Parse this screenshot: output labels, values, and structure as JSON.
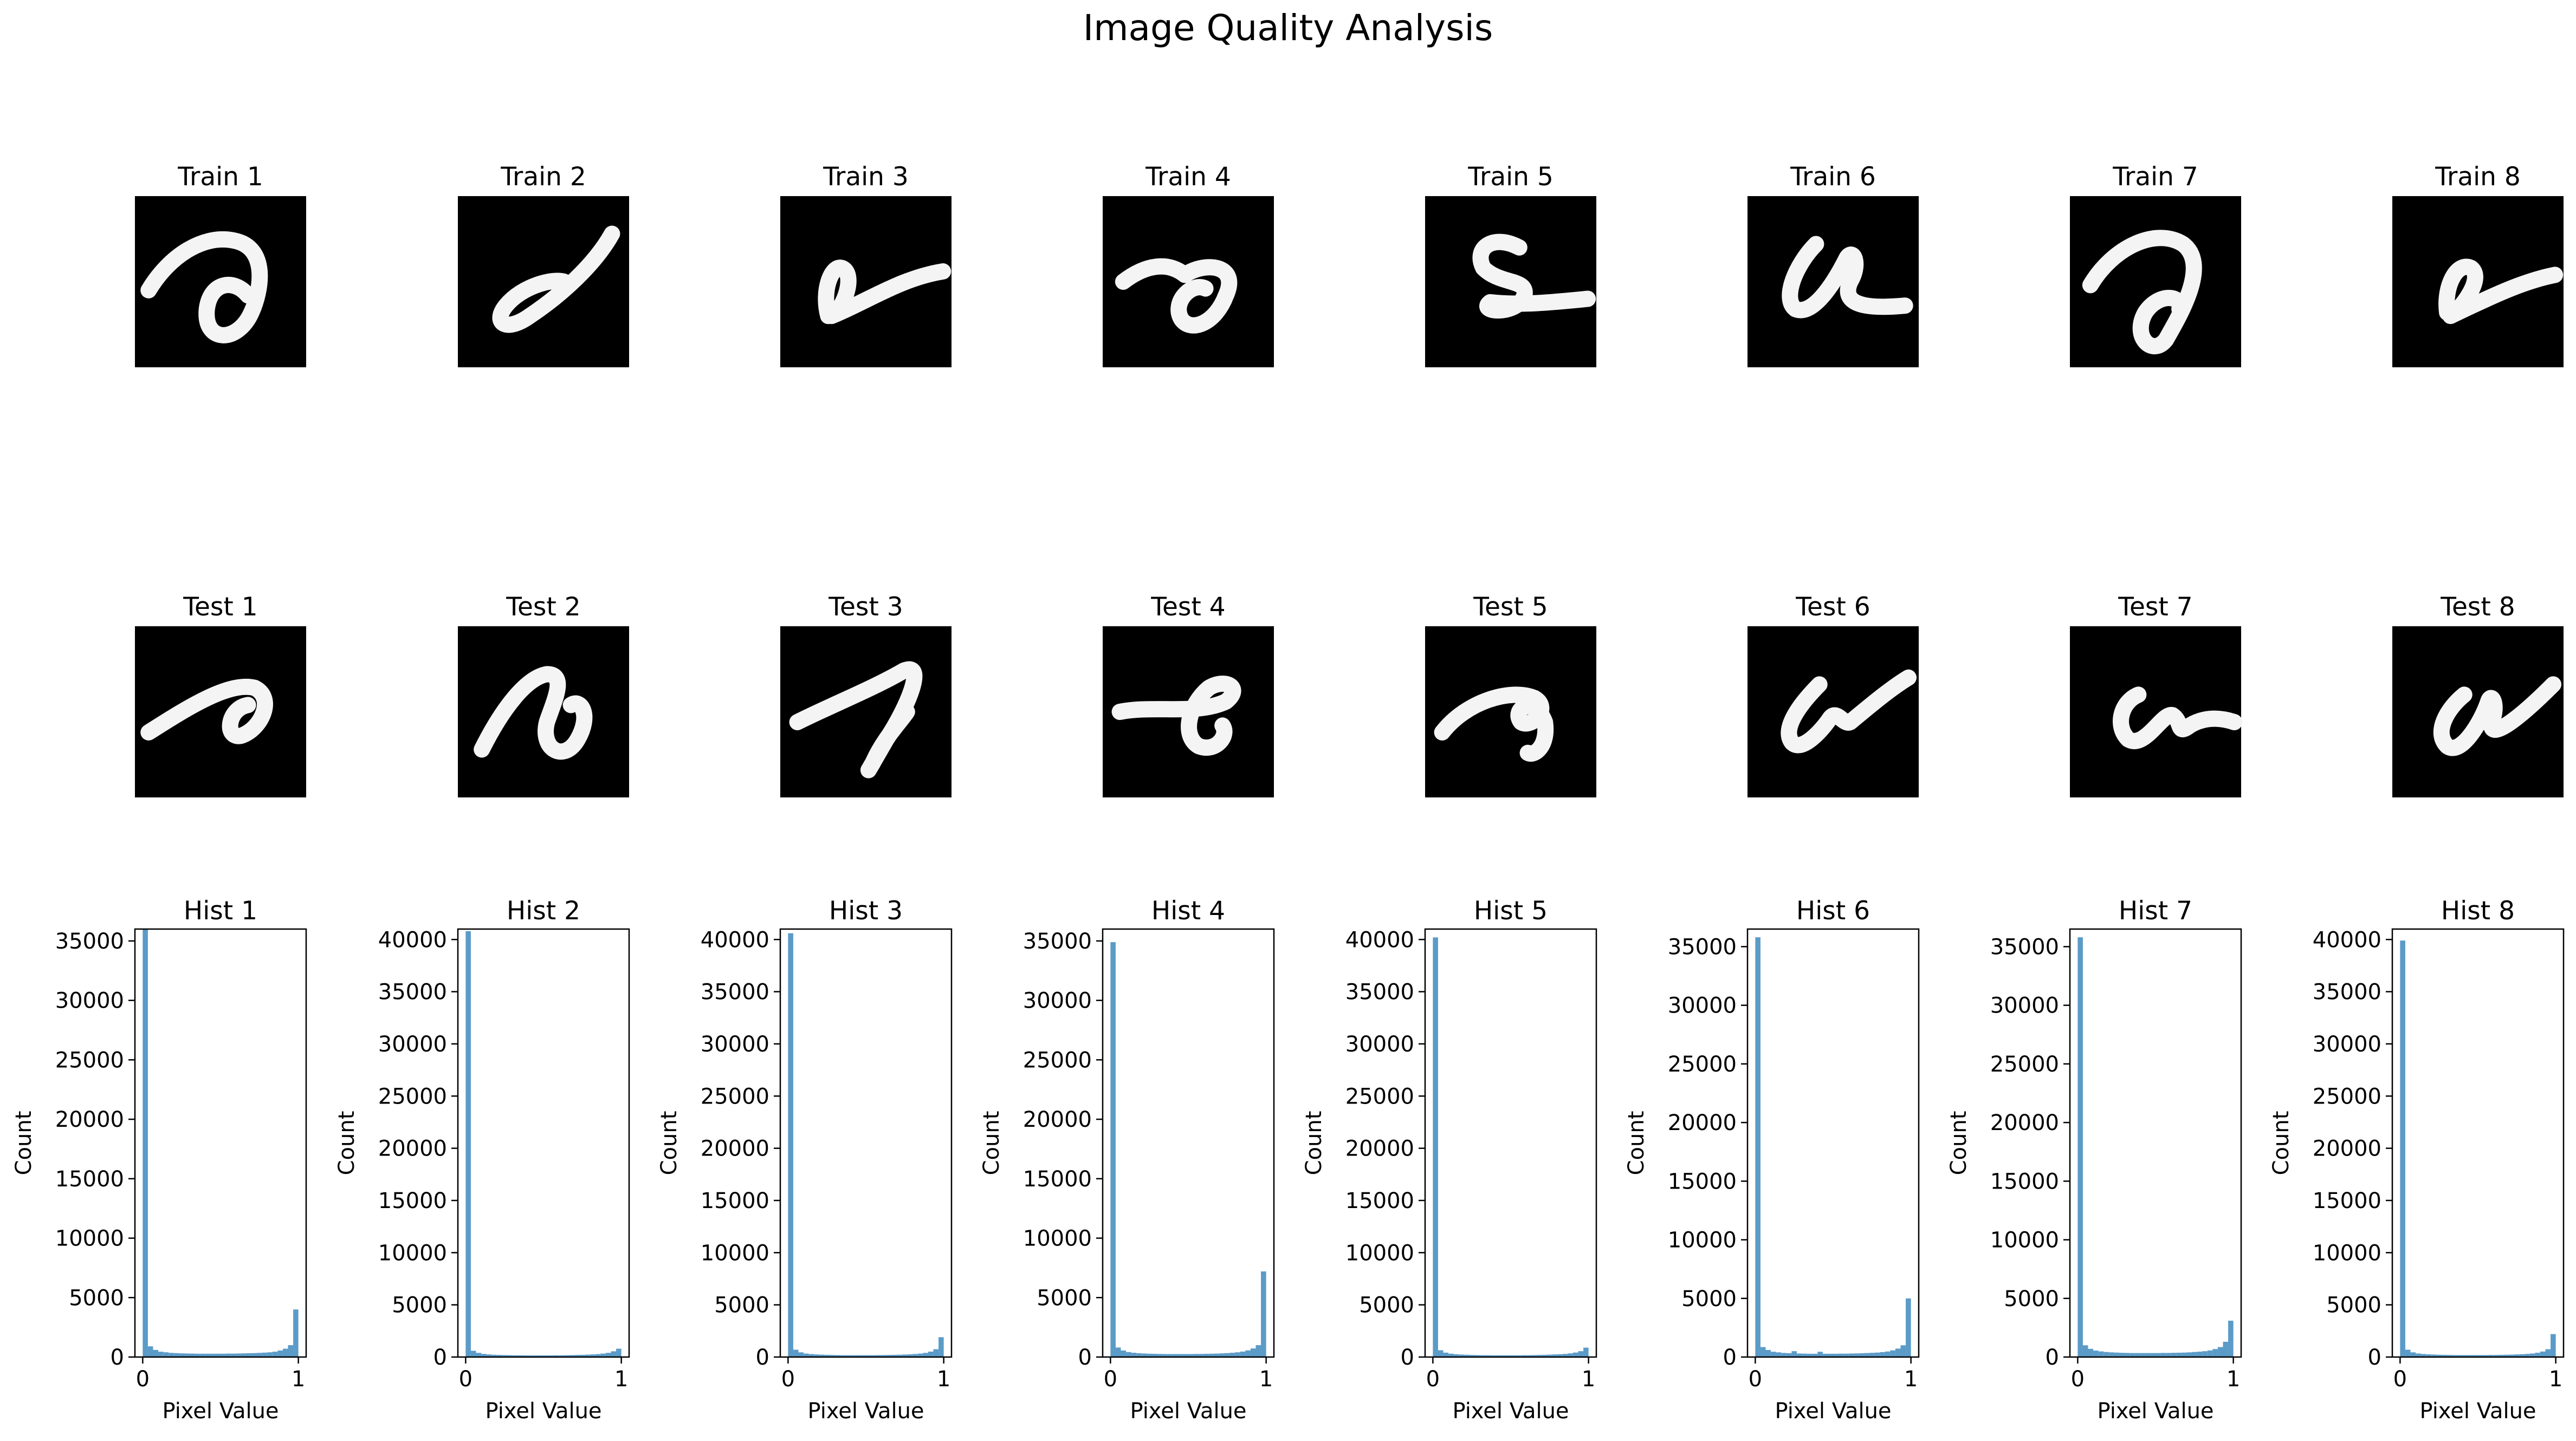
{
  "figure": {
    "title": "Image Quality Analysis"
  },
  "train_row": {
    "titles": [
      "Train 1",
      "Train 2",
      "Train 3",
      "Train 4",
      "Train 5",
      "Train 6",
      "Train 7",
      "Train 8"
    ]
  },
  "test_row": {
    "titles": [
      "Test 1",
      "Test 2",
      "Test 3",
      "Test 4",
      "Test 5",
      "Test 6",
      "Test 7",
      "Test 8"
    ]
  },
  "chart_data": [
    {
      "type": "bar",
      "title": "Hist 1",
      "xlabel": "Pixel Value",
      "ylabel": "Count",
      "xlim": [
        0,
        1
      ],
      "ylim": [
        0,
        36000
      ],
      "yticks": [
        0,
        5000,
        10000,
        15000,
        20000,
        25000,
        30000,
        35000
      ],
      "xticks": [
        0,
        1
      ],
      "color": "#5b9bc8",
      "bins": 30,
      "values": [
        36000,
        900,
        600,
        450,
        400,
        350,
        330,
        310,
        300,
        290,
        280,
        280,
        280,
        280,
        280,
        280,
        290,
        290,
        300,
        310,
        320,
        330,
        350,
        370,
        400,
        450,
        550,
        700,
        1000,
        4000
      ]
    },
    {
      "type": "bar",
      "title": "Hist 2",
      "xlabel": "Pixel Value",
      "ylabel": "Count",
      "xlim": [
        0,
        1
      ],
      "ylim": [
        0,
        41000
      ],
      "yticks": [
        0,
        5000,
        10000,
        15000,
        20000,
        25000,
        30000,
        35000,
        40000
      ],
      "xticks": [
        0,
        1
      ],
      "color": "#5b9bc8",
      "bins": 30,
      "values": [
        40800,
        600,
        400,
        300,
        250,
        220,
        200,
        190,
        180,
        170,
        170,
        160,
        160,
        160,
        160,
        160,
        160,
        170,
        170,
        180,
        190,
        200,
        210,
        230,
        250,
        280,
        330,
        400,
        550,
        800
      ]
    },
    {
      "type": "bar",
      "title": "Hist 3",
      "xlabel": "Pixel Value",
      "ylabel": "Count",
      "xlim": [
        0,
        1
      ],
      "ylim": [
        0,
        41000
      ],
      "yticks": [
        0,
        5000,
        10000,
        15000,
        20000,
        25000,
        30000,
        35000,
        40000
      ],
      "xticks": [
        0,
        1
      ],
      "color": "#5b9bc8",
      "bins": 30,
      "values": [
        40600,
        700,
        450,
        330,
        280,
        250,
        230,
        210,
        200,
        190,
        180,
        180,
        180,
        180,
        180,
        180,
        180,
        190,
        190,
        200,
        210,
        220,
        240,
        260,
        290,
        330,
        400,
        520,
        750,
        1900
      ]
    },
    {
      "type": "bar",
      "title": "Hist 4",
      "xlabel": "Pixel Value",
      "ylabel": "Count",
      "xlim": [
        0,
        1
      ],
      "ylim": [
        0,
        36000
      ],
      "yticks": [
        0,
        5000,
        10000,
        15000,
        20000,
        25000,
        30000,
        35000
      ],
      "xticks": [
        0,
        1
      ],
      "color": "#5b9bc8",
      "bins": 30,
      "values": [
        34900,
        800,
        550,
        420,
        360,
        320,
        300,
        280,
        270,
        260,
        250,
        250,
        250,
        250,
        250,
        250,
        260,
        260,
        270,
        280,
        290,
        310,
        330,
        360,
        400,
        460,
        560,
        720,
        1000,
        7200
      ]
    },
    {
      "type": "bar",
      "title": "Hist 5",
      "xlabel": "Pixel Value",
      "ylabel": "Count",
      "xlim": [
        0,
        1
      ],
      "ylim": [
        0,
        41000
      ],
      "yticks": [
        0,
        5000,
        10000,
        15000,
        20000,
        25000,
        30000,
        35000,
        40000
      ],
      "xticks": [
        0,
        1
      ],
      "color": "#5b9bc8",
      "bins": 30,
      "values": [
        40200,
        650,
        420,
        320,
        270,
        240,
        220,
        200,
        190,
        180,
        180,
        170,
        170,
        170,
        170,
        170,
        170,
        180,
        180,
        190,
        200,
        210,
        230,
        250,
        270,
        300,
        350,
        430,
        560,
        900
      ]
    },
    {
      "type": "bar",
      "title": "Hist 6",
      "xlabel": "Pixel Value",
      "ylabel": "Count",
      "xlim": [
        0,
        1
      ],
      "ylim": [
        0,
        36500
      ],
      "yticks": [
        0,
        5000,
        10000,
        15000,
        20000,
        25000,
        30000,
        35000
      ],
      "xticks": [
        0,
        1
      ],
      "color": "#5b9bc8",
      "bins": 30,
      "values": [
        35800,
        850,
        600,
        450,
        400,
        350,
        330,
        500,
        300,
        290,
        280,
        280,
        450,
        280,
        280,
        280,
        290,
        290,
        300,
        310,
        320,
        340,
        360,
        380,
        420,
        470,
        570,
        720,
        1000,
        5000
      ]
    },
    {
      "type": "bar",
      "title": "Hist 7",
      "xlabel": "Pixel Value",
      "ylabel": "Count",
      "xlim": [
        0,
        1
      ],
      "ylim": [
        0,
        36500
      ],
      "yticks": [
        0,
        5000,
        10000,
        15000,
        20000,
        25000,
        30000,
        35000
      ],
      "xticks": [
        0,
        1
      ],
      "color": "#5b9bc8",
      "bins": 30,
      "values": [
        35800,
        1000,
        700,
        550,
        480,
        430,
        400,
        380,
        360,
        350,
        340,
        340,
        340,
        340,
        340,
        340,
        350,
        350,
        360,
        370,
        380,
        400,
        430,
        460,
        500,
        560,
        680,
        850,
        1300,
        3100
      ]
    },
    {
      "type": "bar",
      "title": "Hist 8",
      "xlabel": "Pixel Value",
      "ylabel": "Count",
      "xlim": [
        0,
        1
      ],
      "ylim": [
        0,
        41000
      ],
      "yticks": [
        0,
        5000,
        10000,
        15000,
        20000,
        25000,
        30000,
        35000,
        40000
      ],
      "xticks": [
        0,
        1
      ],
      "color": "#5b9bc8",
      "bins": 30,
      "values": [
        39900,
        700,
        450,
        340,
        290,
        260,
        240,
        220,
        210,
        200,
        190,
        190,
        190,
        190,
        190,
        190,
        190,
        200,
        200,
        210,
        220,
        230,
        250,
        270,
        300,
        340,
        410,
        530,
        750,
        2200
      ]
    }
  ]
}
